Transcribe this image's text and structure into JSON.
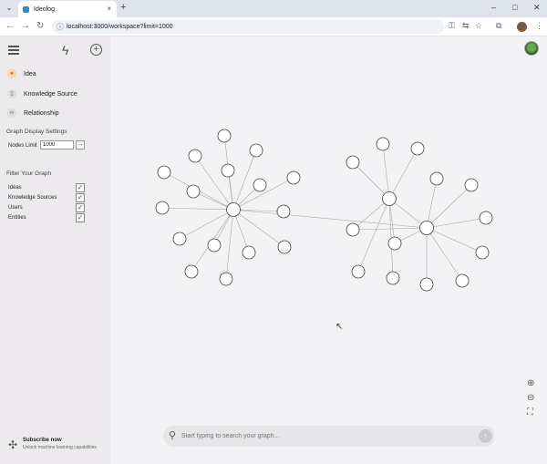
{
  "browser": {
    "tab_title": "Ideolog",
    "url": "localhost:3000/workspace?limit=1000",
    "new_tab": "+",
    "close_tab": "×",
    "win_min": "–",
    "win_max": "□",
    "win_close": "✕"
  },
  "sidebar": {
    "items": [
      {
        "label": "Idea",
        "icon": "lightbulb-icon"
      },
      {
        "label": "Knowledge Source",
        "icon": "book-icon"
      },
      {
        "label": "Relationship",
        "icon": "link-icon"
      }
    ],
    "graph_settings_title": "Graph Display Settings",
    "nodes_limit_label": "Nodes Limit",
    "nodes_limit_value": "1000",
    "filter_title": "Filter Your Graph",
    "filters": [
      {
        "label": "Ideas",
        "checked": true
      },
      {
        "label": "Knowledge Sources",
        "checked": true
      },
      {
        "label": "Users",
        "checked": true
      },
      {
        "label": "Entities",
        "checked": true
      }
    ],
    "subscribe_title": "Subscribe now",
    "subscribe_sub": "Unlock machine learning capabilities"
  },
  "search": {
    "placeholder": "Start typing to search your graph..."
  },
  "colors": {
    "sidebar_bg": "#eceaed",
    "canvas_bg": "#f3f2f4",
    "node_stroke": "#444444",
    "edge": "#9a9a9a"
  }
}
